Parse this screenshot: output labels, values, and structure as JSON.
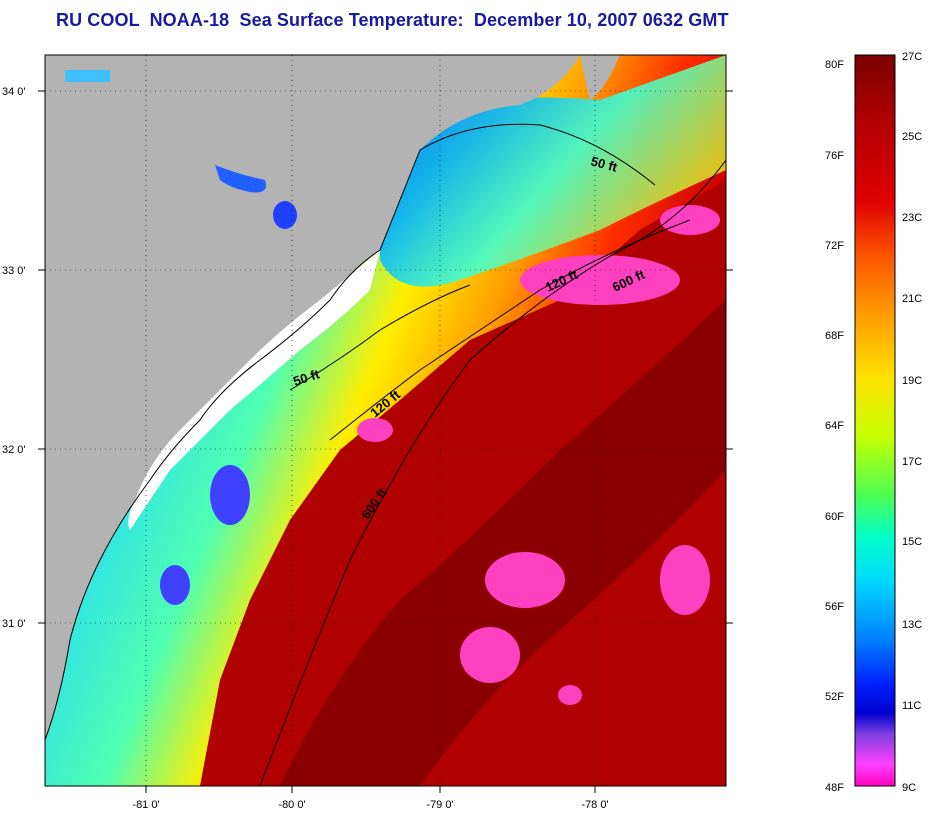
{
  "title": "RU COOL  NOAA-18  Sea Surface Temperature:  December 10, 2007 0632 GMT",
  "axes": {
    "lat_labels": [
      "34 0'",
      "33 0'",
      "32 0'",
      "31 0'"
    ],
    "lon_labels": [
      "-81 0'",
      "-80 0'",
      "-79 0'",
      "-78 0'"
    ]
  },
  "contour_labels": [
    {
      "text": "50 ft",
      "depth_ft": 50
    },
    {
      "text": "50 ft",
      "depth_ft": 50
    },
    {
      "text": "120 ft",
      "depth_ft": 120
    },
    {
      "text": "120 ft",
      "depth_ft": 120
    },
    {
      "text": "600 ft",
      "depth_ft": 600
    },
    {
      "text": "600 ft",
      "depth_ft": 600
    }
  ],
  "colorbar": {
    "fahrenheit_labels": [
      "80F",
      "76F",
      "72F",
      "68F",
      "64F",
      "60F",
      "56F",
      "52F",
      "48F"
    ],
    "celsius_labels": [
      "27C",
      "25C",
      "23C",
      "21C",
      "19C",
      "17C",
      "15C",
      "13C",
      "11C",
      "9C"
    ],
    "range_f": [
      48,
      80
    ],
    "range_c": [
      9,
      27
    ],
    "gradient_stops": [
      "#7a0000",
      "#b00000",
      "#e00000",
      "#ff5a00",
      "#ffa000",
      "#ffe000",
      "#c8ff00",
      "#50ff50",
      "#00ffc8",
      "#00d8ff",
      "#0080ff",
      "#0020ff",
      "#0000d0",
      "#8040e0",
      "#ff40ff",
      "#ff00c0"
    ]
  },
  "colors": {
    "land": "#b3b3b3",
    "cloud": "#ffffff",
    "title": "#1a1aa0"
  }
}
